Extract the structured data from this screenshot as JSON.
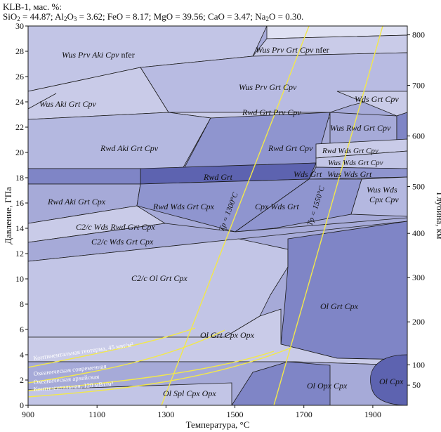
{
  "header": {
    "line1": "KLB-1, мас. %:",
    "line2_parts": [
      "SiO",
      "2",
      " = 44.87; Al",
      "2",
      "O",
      "3",
      " = 3.62; FeO = 8.17; MgO = 39.56; CaO = 3.47; Na",
      "2",
      "O = 0.30."
    ]
  },
  "axes": {
    "x_label": "Температура, °C",
    "y_left_label": "Давление, ГПа",
    "y_right_label": "Глубина, км",
    "x_ticks": [
      "900",
      "1100",
      "1300",
      "1500",
      "1700",
      "1900"
    ],
    "y_left_ticks": [
      "0",
      "2",
      "4",
      "6",
      "8",
      "10",
      "12",
      "14",
      "16",
      "18",
      "20",
      "22",
      "24",
      "26",
      "28",
      "30"
    ],
    "y_right_ticks": [
      "50",
      "100",
      "200",
      "300",
      "400",
      "500",
      "600",
      "700",
      "800"
    ]
  },
  "fields": {
    "wus_prv_aki_cpv": "Wus Prv Aki Cpv",
    "nfer_1": "nfer",
    "wus_prv_grt_cpv": "Wus Prv Grt Cpv",
    "nfer_2": "nfer",
    "wus_prv_grt_cpv_2": "Wus Prv Grt Cpv",
    "wds_grt_cpv": "Wds Grt Cpv",
    "wus_aki_grt_cpv": "Wus Aki Grt Cpv",
    "rwd_grt_prv_cpv": "Rwd Grt Prv Cpv",
    "wus_rwd_grt_cpv": "Wus Rwd Grt Cpv",
    "rwd_aki_grt_cpv": "Rwd Aki Grt Cpv",
    "rwd_grt_cpv": "Rwd Grt Cpv",
    "rwd_wds_grt_cpv": "Rwd Wds Grt Cpv",
    "wus_wds_grt_cpv": "Wus Wds Grt Cpv",
    "rwd_grt": "Rwd Grt",
    "wds_grt": "Wds Grt",
    "wus_wds_grt": "Wus Wds Grt",
    "wus_wds_cpx_cpv": "Wus Wds Cpx Cpv",
    "rwd_aki_grt_cpx": "Rwd Aki Grt Cpx",
    "rwd_wds_grt_cpx": "Rwd Wds Grt Cpx",
    "cpx_wds_grt": "Cpx Wds Grt",
    "c2c_wds_rwd_grt_cpx": "C2/c Wds Rwd Grt Cpx",
    "c2c_wds_grt_cpx": "C2/c Wds Grt Cpx",
    "c2c_ol_grt_cpx": "C2/c Ol Grt Cpx",
    "ol_grt_cpx": "Ol Grt Cpx",
    "ol_grt_cpx_opx": "Ol Grt Cpx Opx",
    "ol_opx_cpx": "Ol Opx Cpx",
    "ol_cpx": "Ol Cpx",
    "ol_spl_cpx_opx": "Ol Spl Cpx Opx"
  },
  "geotherms": {
    "continental_45": "Континентальная геотерма, 45 мвт/м²",
    "oceanic_modern": "Океаническая современная",
    "oceanic_archean": "Океаническая архейская",
    "continental_120": "Континентальная, 120 мВт/м²"
  },
  "adiabats": {
    "tp1300": "Tp = 1300°C",
    "tp1550": "Tp = 1550°C"
  },
  "colors": {
    "field_light": "#c9cbe8",
    "field_mid": "#a6aad8",
    "field_dark": "#7f85c6",
    "field_darker": "#5d63b0",
    "field_pale": "#dcdff2",
    "geotherm": "#f2e84b",
    "boundary": "#1a1a1a"
  }
}
